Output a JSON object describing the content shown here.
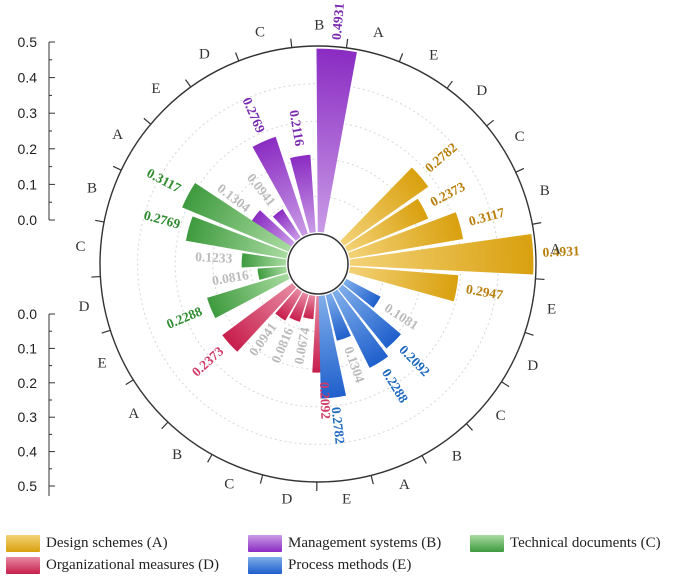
{
  "chart_data": {
    "type": "polar-bar",
    "title": "",
    "radial_axis": {
      "upper_ticks": [
        "0.0",
        "0.1",
        "0.2",
        "0.3",
        "0.4",
        "0.5"
      ],
      "lower_ticks": [
        "0.0",
        "0.1",
        "0.2",
        "0.3",
        "0.4",
        "0.5"
      ],
      "range": [
        0,
        0.5
      ]
    },
    "groups": [
      {
        "key": "A",
        "name": "Design schemes (A)",
        "color": "#D9A00E",
        "color_light": "#F3D277",
        "label_color": "#B87F0C",
        "bars": [
          {
            "category": "A",
            "value": 0.2947,
            "label": "0.2947"
          },
          {
            "category": "B",
            "value": 0.4931,
            "label": "0.4931"
          },
          {
            "category": "C",
            "value": 0.3117,
            "label": "0.3117"
          },
          {
            "category": "D",
            "value": 0.2373,
            "label": "0.2373"
          },
          {
            "category": "E",
            "value": 0.2782,
            "label": "0.2782"
          }
        ]
      },
      {
        "key": "B",
        "name": "Management systems (B)",
        "color": "#8A2BC2",
        "color_light": "#C99BE6",
        "label_color": "#7A2BB0",
        "bars": [
          {
            "category": "A",
            "value": 0.4931,
            "label": "0.4931"
          },
          {
            "category": "B",
            "value": 0.2116,
            "label": "0.2116"
          },
          {
            "category": "C",
            "value": 0.2769,
            "label": "0.2769"
          },
          {
            "category": "D",
            "value": 0.0941,
            "label": "0.0941"
          },
          {
            "category": "E",
            "value": 0.1304,
            "label": "0.1304"
          }
        ]
      },
      {
        "key": "C",
        "name": "Technical documents (C)",
        "color": "#3E9A3E",
        "color_light": "#A8DBA0",
        "label_color": "#2E8B2E",
        "bars": [
          {
            "category": "A",
            "value": 0.3117,
            "label": "0.3117"
          },
          {
            "category": "B",
            "value": 0.2769,
            "label": "0.2769"
          },
          {
            "category": "C",
            "value": 0.1233,
            "label": "0.1233"
          },
          {
            "category": "D",
            "value": 0.0816,
            "label": "0.0816"
          },
          {
            "category": "E",
            "value": 0.2288,
            "label": "0.2288"
          }
        ]
      },
      {
        "key": "D",
        "name": "Organizational measures (D)",
        "color": "#C71E4C",
        "color_light": "#E88AA2",
        "label_color": "#D23A66",
        "bars": [
          {
            "category": "A",
            "value": 0.2373,
            "label": "0.2373"
          },
          {
            "category": "B",
            "value": 0.0941,
            "label": "0.0941"
          },
          {
            "category": "C",
            "value": 0.0816,
            "label": "0.0816"
          },
          {
            "category": "D",
            "value": 0.0674,
            "label": "0.0674"
          },
          {
            "category": "E",
            "value": 0.2092,
            "label": "0.2092"
          }
        ]
      },
      {
        "key": "E",
        "name": "Process methods (E)",
        "color": "#1F5FCC",
        "color_light": "#7FAEEA",
        "label_color": "#1F6AC0",
        "bars": [
          {
            "category": "A",
            "value": 0.2782,
            "label": "0.2782"
          },
          {
            "category": "B",
            "value": 0.1304,
            "label": "0.1304"
          },
          {
            "category": "C",
            "value": 0.2288,
            "label": "0.2288"
          },
          {
            "category": "D",
            "value": 0.2092,
            "label": "0.2092"
          },
          {
            "category": "E",
            "value": 0.1081,
            "label": "0.1081"
          }
        ]
      }
    ],
    "outer_sector_labels": [
      "A",
      "E",
      "D",
      "C",
      "B",
      "A",
      "E",
      "D",
      "C",
      "B",
      "A",
      "E",
      "D",
      "C",
      "B",
      "A",
      "E",
      "D",
      "C",
      "B",
      "A",
      "E",
      "D",
      "C",
      "B"
    ],
    "low_value_label_color": "#BBBBBB",
    "low_value_threshold": 0.2
  }
}
